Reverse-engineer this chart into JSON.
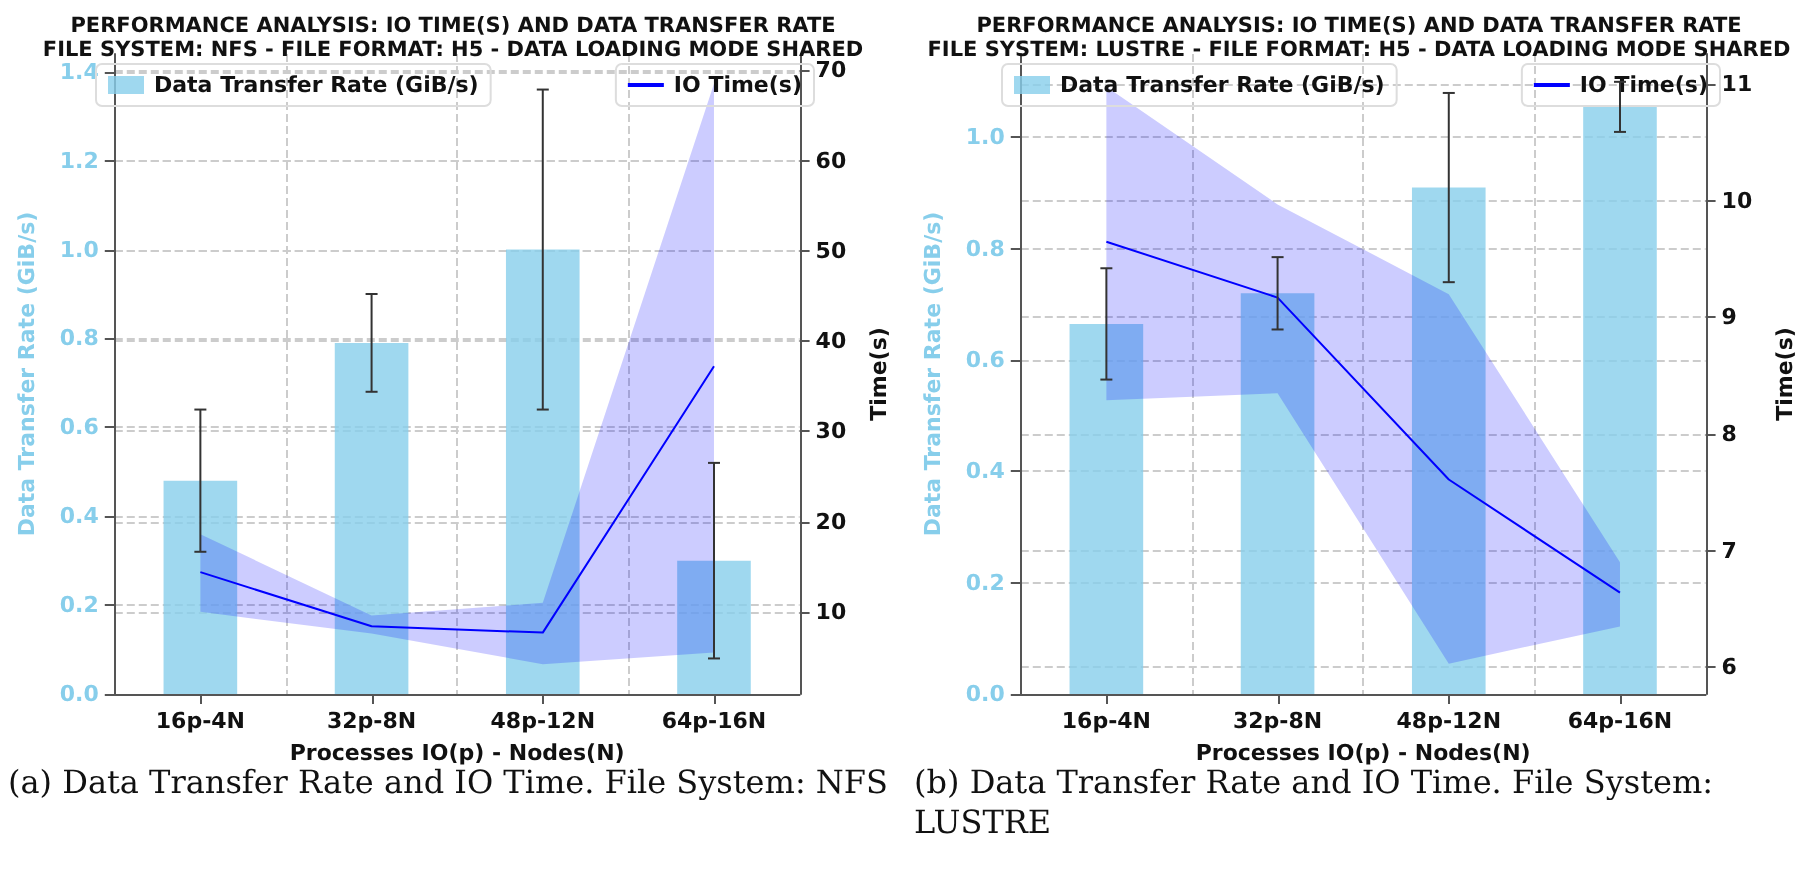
{
  "chart_data": [
    {
      "type": "bar",
      "title": "PERFORMANCE ANALYSIS: IO TIME(S) AND DATA TRANSFER RATE\nFILE SYSTEM: NFS - FILE FORMAT: H5 - DATA LOADING MODE SHARED",
      "xlabel": "Processes IO(p) - Nodes(N)",
      "ylabel": "Data Transfer Rate (GiB/s)",
      "y2label": "Time(s)",
      "categories": [
        "16p-4N",
        "32p-8N",
        "48p-12N",
        "64p-16N"
      ],
      "series": [
        {
          "name": "Data Transfer Rate (GiB/s)",
          "color": "#87ceeb",
          "values": [
            0.48,
            0.79,
            1.0,
            0.3
          ],
          "errors": [
            0.16,
            0.11,
            0.36,
            0.22
          ]
        },
        {
          "name": "IO Time(s)",
          "type": "line",
          "axis": "y2",
          "color": "#0000ff",
          "values": [
            14.4,
            8.4,
            7.7,
            37.2
          ],
          "lower": [
            10,
            7.6,
            4.2,
            5.5
          ],
          "upper": [
            18.6,
            9.6,
            11.0,
            68.5
          ]
        }
      ],
      "ylim": [
        0,
        1.44
      ],
      "yticks": [
        {
          "value": 0,
          "label": "0.0"
        },
        {
          "value": 0.2,
          "label": "0.2"
        },
        {
          "value": 0.4,
          "label": "0.4"
        },
        {
          "value": 0.6,
          "label": "0.6"
        },
        {
          "value": 0.8,
          "label": "0.8"
        },
        {
          "value": 1.0,
          "label": "1.0"
        },
        {
          "value": 1.2,
          "label": "1.2"
        },
        {
          "value": 1.4,
          "label": "1.4"
        }
      ],
      "y2lim": [
        0.9,
        71.8
      ],
      "y2ticks": [
        10,
        20,
        30,
        40,
        50,
        60,
        70
      ],
      "grid": true,
      "legend": "top",
      "annotations": [
        "(a) Data Transfer Rate and IO Time. File System: NFS"
      ]
    },
    {
      "type": "bar",
      "title": "PERFORMANCE ANALYSIS: IO TIME(S) AND DATA TRANSFER RATE\nFILE SYSTEM: LUSTRE - FILE FORMAT: H5 - DATA LOADING MODE SHARED",
      "xlabel": "Processes IO(p) - Nodes(N)",
      "ylabel": "Data Transfer Rate (GiB/s)",
      "y2label": "Time(s)",
      "categories": [
        "16p-4N",
        "32p-8N",
        "48p-12N",
        "64p-16N"
      ],
      "series": [
        {
          "name": "Data Transfer Rate (GiB/s)",
          "color": "#87ceeb",
          "values": [
            0.665,
            0.72,
            0.91,
            1.055
          ],
          "errors": [
            0.1,
            0.065,
            0.17,
            0.045
          ]
        },
        {
          "name": "IO Time(s)",
          "type": "line",
          "axis": "y2",
          "color": "#0000ff",
          "values": [
            9.65,
            9.17,
            7.61,
            6.64
          ],
          "lower": [
            8.29,
            8.35,
            6.03,
            6.35
          ],
          "upper": [
            10.98,
            9.97,
            9.2,
            6.9
          ]
        }
      ],
      "ylim": [
        0,
        1.15
      ],
      "yticks": [
        {
          "value": 0,
          "label": "0.0"
        },
        {
          "value": 0.2,
          "label": "0.2"
        },
        {
          "value": 0.4,
          "label": "0.4"
        },
        {
          "value": 0.6,
          "label": "0.6"
        },
        {
          "value": 0.8,
          "label": "0.8"
        },
        {
          "value": 1.0,
          "label": "1.0"
        }
      ],
      "y2lim": [
        5.77,
        11.26
      ],
      "y2ticks": [
        6,
        7,
        8,
        9,
        10,
        11
      ],
      "grid": true,
      "legend": "top",
      "annotations": [
        "(b) Data Transfer Rate and IO Time. File System: LUSTRE"
      ]
    }
  ]
}
